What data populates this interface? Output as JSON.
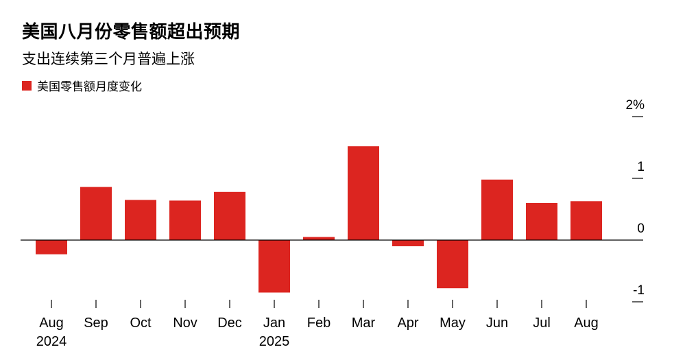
{
  "header": {
    "title": "美国八月份零售额超出预期",
    "subtitle": "支出连续第三个月普遍上涨"
  },
  "legend": {
    "label": "美国零售额月度变化",
    "color": "#dc2520"
  },
  "chart_data": {
    "type": "bar",
    "categories": [
      "Aug",
      "Sep",
      "Oct",
      "Nov",
      "Dec",
      "Jan",
      "Feb",
      "Mar",
      "Apr",
      "May",
      "Jun",
      "Jul",
      "Aug"
    ],
    "year_labels": [
      {
        "index": 0,
        "label": "2024"
      },
      {
        "index": 5,
        "label": "2025"
      }
    ],
    "series": [
      {
        "name": "美国零售额月度变化",
        "values": [
          -0.23,
          0.86,
          0.65,
          0.64,
          0.78,
          -0.85,
          0.05,
          1.52,
          -0.1,
          -0.78,
          0.98,
          0.6,
          0.63
        ]
      }
    ],
    "ylim": [
      -1,
      2
    ],
    "yticks": [
      2,
      1,
      0,
      -1
    ],
    "ytick_labels": [
      "2%",
      "1",
      "0",
      "-1"
    ],
    "bar_color": "#dc2520"
  }
}
